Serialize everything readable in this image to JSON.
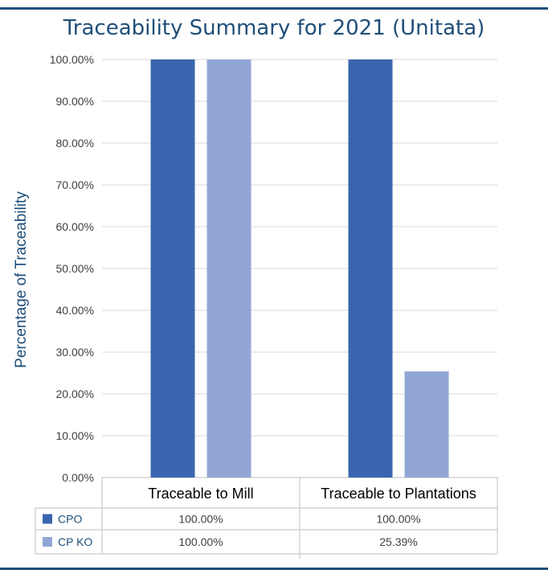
{
  "chart_data": {
    "type": "bar",
    "title": "Traceability Summary for 2021 (Unitata)",
    "ylabel": "Percentage of Traceability",
    "xlabel": "",
    "categories": [
      "Traceable to Mill",
      "Traceable to Plantations"
    ],
    "series": [
      {
        "name": "CPO",
        "values": [
          100.0,
          100.0
        ],
        "labels": [
          "100.00%",
          "100.00%"
        ],
        "color": "#3a65ae"
      },
      {
        "name": "CP KO",
        "values": [
          100.0,
          25.39
        ],
        "labels": [
          "100.00%",
          "25.39%"
        ],
        "color": "#92a6d6"
      }
    ],
    "ylim": [
      0,
      100
    ],
    "yticks": [
      "0.00%",
      "10.00%",
      "20.00%",
      "30.00%",
      "40.00%",
      "50.00%",
      "60.00%",
      "70.00%",
      "80.00%",
      "90.00%",
      "100.00%"
    ],
    "grid": true,
    "legend": "data-table-bottom"
  },
  "colors": {
    "title": "#1f4e79",
    "rule": "#1f4e79",
    "grid": "#d9d9d9"
  }
}
